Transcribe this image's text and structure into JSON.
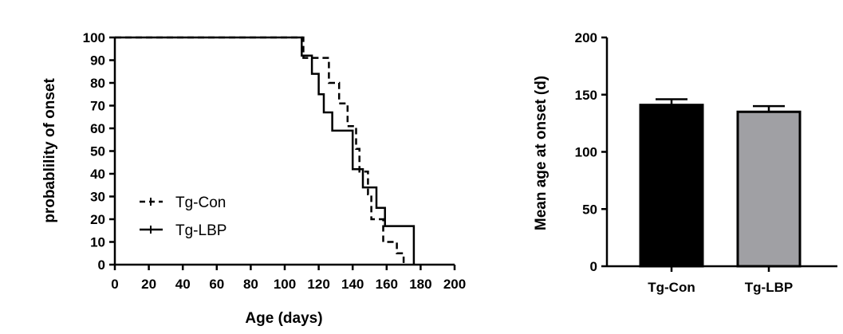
{
  "chart_data": [
    {
      "type": "line",
      "step": true,
      "xlabel": "Age (days)",
      "ylabel": "probablility of onset",
      "xlim": [
        0,
        200
      ],
      "ylim": [
        0,
        100
      ],
      "x_ticks": [
        "0",
        "20",
        "40",
        "60",
        "80",
        "100",
        "120",
        "140",
        "160",
        "180",
        "200"
      ],
      "y_ticks": [
        "0",
        "10",
        "20",
        "30",
        "40",
        "50",
        "60",
        "70",
        "80",
        "90",
        "100"
      ],
      "legend_position": "lower-left",
      "series": [
        {
          "name": "Tg-Con",
          "style": "dashed",
          "color": "#000000",
          "points": [
            [
              0,
              100
            ],
            [
              111,
              100
            ],
            [
              111,
              91
            ],
            [
              126,
              91
            ],
            [
              126,
              80
            ],
            [
              132,
              80
            ],
            [
              132,
              71
            ],
            [
              137,
              71
            ],
            [
              137,
              61
            ],
            [
              142,
              61
            ],
            [
              142,
              51
            ],
            [
              144,
              51
            ],
            [
              144,
              41
            ],
            [
              149,
              41
            ],
            [
              149,
              31
            ],
            [
              151,
              31
            ],
            [
              151,
              20
            ],
            [
              158,
              20
            ],
            [
              158,
              10
            ],
            [
              166,
              10
            ],
            [
              166,
              5
            ],
            [
              170,
              5
            ],
            [
              170,
              0
            ]
          ]
        },
        {
          "name": "Tg-LBP",
          "style": "solid",
          "color": "#000000",
          "points": [
            [
              0,
              100
            ],
            [
              110,
              100
            ],
            [
              110,
              92
            ],
            [
              116,
              92
            ],
            [
              116,
              84
            ],
            [
              120,
              84
            ],
            [
              120,
              75
            ],
            [
              123,
              75
            ],
            [
              123,
              67
            ],
            [
              128,
              67
            ],
            [
              128,
              59
            ],
            [
              140,
              59
            ],
            [
              140,
              42
            ],
            [
              146,
              42
            ],
            [
              146,
              34
            ],
            [
              154,
              34
            ],
            [
              154,
              25
            ],
            [
              159,
              25
            ],
            [
              159,
              17
            ],
            [
              176,
              17
            ],
            [
              176,
              0
            ]
          ]
        }
      ]
    },
    {
      "type": "bar",
      "ylabel": "Mean age at onset (d)",
      "ylim": [
        0,
        200
      ],
      "y_ticks": [
        "0",
        "50",
        "100",
        "150",
        "200"
      ],
      "categories": [
        "Tg-Con",
        "Tg-LBP"
      ],
      "values": [
        141,
        135
      ],
      "errors": [
        5,
        5
      ],
      "colors": [
        "#000000",
        "#a0a0a4"
      ]
    }
  ]
}
